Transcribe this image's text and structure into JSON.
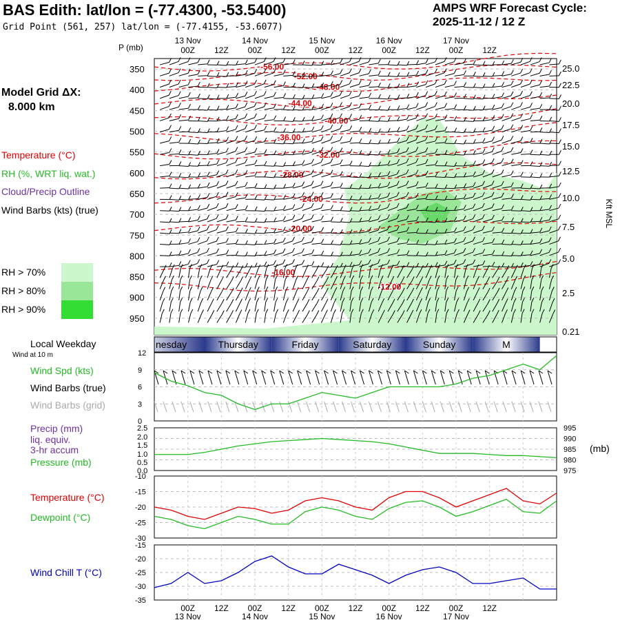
{
  "header": {
    "title": "BAS Edith:  lat/lon = (-77.4300, -53.5400)",
    "grid_point": "Grid Point (561, 257) lat/lon = (-77.4155, -53.6077)",
    "cycle_label": "AMPS WRF Forecast Cycle:",
    "cycle_value": "2025-11-12 / 12  Z"
  },
  "model": {
    "label": "Model Grid ΔX:",
    "value": "8.000 km"
  },
  "legend": {
    "temperature": "Temperature (°C)",
    "rh": "RH (%, WRT liq. wat.)",
    "cloud": "Cloud/Precip Outline",
    "wind": "Wind Barbs (kts) (true)",
    "rh70": "RH > 70%",
    "rh80": "RH > 80%",
    "rh90": "RH > 90%"
  },
  "colors": {
    "temperature": "#e00000",
    "rh": "#22bb22",
    "cloud": "#7030a0",
    "wind": "#000000",
    "windchill": "#0000c0",
    "rh70": "#ccf7cc",
    "rh80": "#99e699",
    "rh90": "#33dd33",
    "day_band": "#2b3a8c"
  },
  "time_axis": {
    "ticks": [
      "00Z",
      "12Z",
      "00Z",
      "12Z",
      "00Z",
      "12Z",
      "00Z",
      "12Z",
      "00Z",
      "12Z"
    ],
    "dates": [
      "13 Nov",
      "14 Nov",
      "15 Nov",
      "16 Nov",
      "17 Nov"
    ],
    "weekdays": [
      "nesday",
      "Thursday",
      "Friday",
      "Saturday",
      "Sunday",
      "M"
    ],
    "weekday_label": "Local Weekday"
  },
  "chart_data": [
    {
      "type": "heatmap",
      "name": "cross-section",
      "ylabel": "P (mb)",
      "ylabel_right": "Kft MSL",
      "pressure_ticks": [
        350,
        400,
        450,
        500,
        550,
        600,
        650,
        700,
        750,
        800,
        850,
        900,
        950
      ],
      "height_ticks_kft": [
        "25.0",
        "22.5",
        "20.0",
        "17.5",
        "15.0",
        "12.5",
        "10.0",
        "7.5",
        "5.0",
        "2.5",
        "0.21"
      ],
      "temperature_contours": [
        {
          "label": "-56.00",
          "p": 345
        },
        {
          "label": "-52.00",
          "p": 368
        },
        {
          "label": "-48.00",
          "p": 394
        },
        {
          "label": "-44.00",
          "p": 433
        },
        {
          "label": "-40.00",
          "p": 475
        },
        {
          "label": "-36.00",
          "p": 515
        },
        {
          "label": "-32.00",
          "p": 557
        },
        {
          "label": "-28.00",
          "p": 605
        },
        {
          "label": "-24.00",
          "p": 663
        },
        {
          "label": "-20.00",
          "p": 735
        },
        {
          "label": "-16.00",
          "p": 840
        },
        {
          "label": "-12.00",
          "p": 875
        }
      ]
    },
    {
      "type": "line",
      "name": "wind",
      "title": "Wind at 10 m",
      "series_labels": [
        "Wind Spd (kts)",
        "Wind Barbs (true)",
        "Wind Barbs (grid)"
      ],
      "yticks": [
        0,
        3,
        6,
        9,
        12
      ],
      "ylim": [
        0,
        12
      ],
      "x_hours": [
        0,
        6,
        12,
        18,
        24,
        30,
        36,
        42,
        48,
        54,
        60,
        66,
        72,
        78,
        84,
        90,
        96,
        102,
        108,
        114,
        120,
        126,
        132,
        138,
        144
      ],
      "speed": [
        8.5,
        7,
        6.2,
        5,
        4.5,
        3,
        2,
        3,
        3,
        4,
        5,
        4.5,
        4,
        5,
        6,
        6,
        6,
        6,
        6.5,
        7.5,
        8,
        9,
        10,
        9,
        11.5
      ]
    },
    {
      "type": "line",
      "name": "pressure-precip",
      "series_labels": [
        "Precip (mm)",
        "liq. equiv.",
        "3-hr accum",
        "Pressure (mb)"
      ],
      "yticks_left": [
        "0.0",
        "0.5",
        "1.0",
        "1.5",
        "2.0",
        "2.5"
      ],
      "yticks_right": [
        975,
        980,
        985,
        990,
        995
      ],
      "unit_right": "(mb)",
      "ylim_right": [
        975,
        995
      ],
      "precip": [
        0,
        0,
        0,
        0,
        0,
        0,
        0,
        0,
        0,
        0,
        0,
        0,
        0,
        0,
        0,
        0,
        0,
        0,
        0,
        0,
        0,
        0,
        0,
        0,
        0
      ],
      "pressure": [
        982.5,
        982.5,
        982.5,
        983.5,
        985,
        986.5,
        987.5,
        988.5,
        989,
        989.5,
        990,
        989.5,
        989,
        988.5,
        987.5,
        986,
        984.5,
        983,
        983,
        983,
        982.5,
        982,
        982,
        981.5,
        981
      ]
    },
    {
      "type": "line",
      "name": "temperature",
      "series_labels": [
        "Temperature (°C)",
        "Dewpoint (°C)"
      ],
      "yticks": [
        -30,
        -25,
        -20,
        -15,
        -10
      ],
      "ylim": [
        -30,
        -10
      ],
      "temperature": [
        -20,
        -21,
        -23,
        -24,
        -22,
        -20,
        -20.5,
        -22,
        -21,
        -18,
        -17,
        -18,
        -20,
        -21,
        -17,
        -15,
        -15,
        -17,
        -20,
        -18,
        -16,
        -14,
        -18,
        -19,
        -15.5
      ],
      "dewpoint": [
        -23,
        -24,
        -26,
        -27,
        -25,
        -23,
        -24,
        -25.5,
        -25.5,
        -21.5,
        -20,
        -21,
        -23,
        -24,
        -20.5,
        -18.5,
        -18,
        -20,
        -23,
        -21.5,
        -19.5,
        -17.5,
        -21.5,
        -22,
        -18
      ]
    },
    {
      "type": "line",
      "name": "wind-chill",
      "series_labels": [
        "Wind Chill T (°C)"
      ],
      "yticks": [
        -35,
        -30,
        -25,
        -20,
        -15
      ],
      "ylim": [
        -35,
        -15
      ],
      "windchill": [
        -30.5,
        -29,
        -25,
        -29,
        -28,
        -25,
        -21,
        -19,
        -23,
        -25.5,
        -25.5,
        -22,
        -24,
        -26,
        -29,
        -26,
        -24,
        -23,
        -25,
        -29,
        -29,
        -28,
        -27,
        -31,
        -31
      ]
    }
  ]
}
